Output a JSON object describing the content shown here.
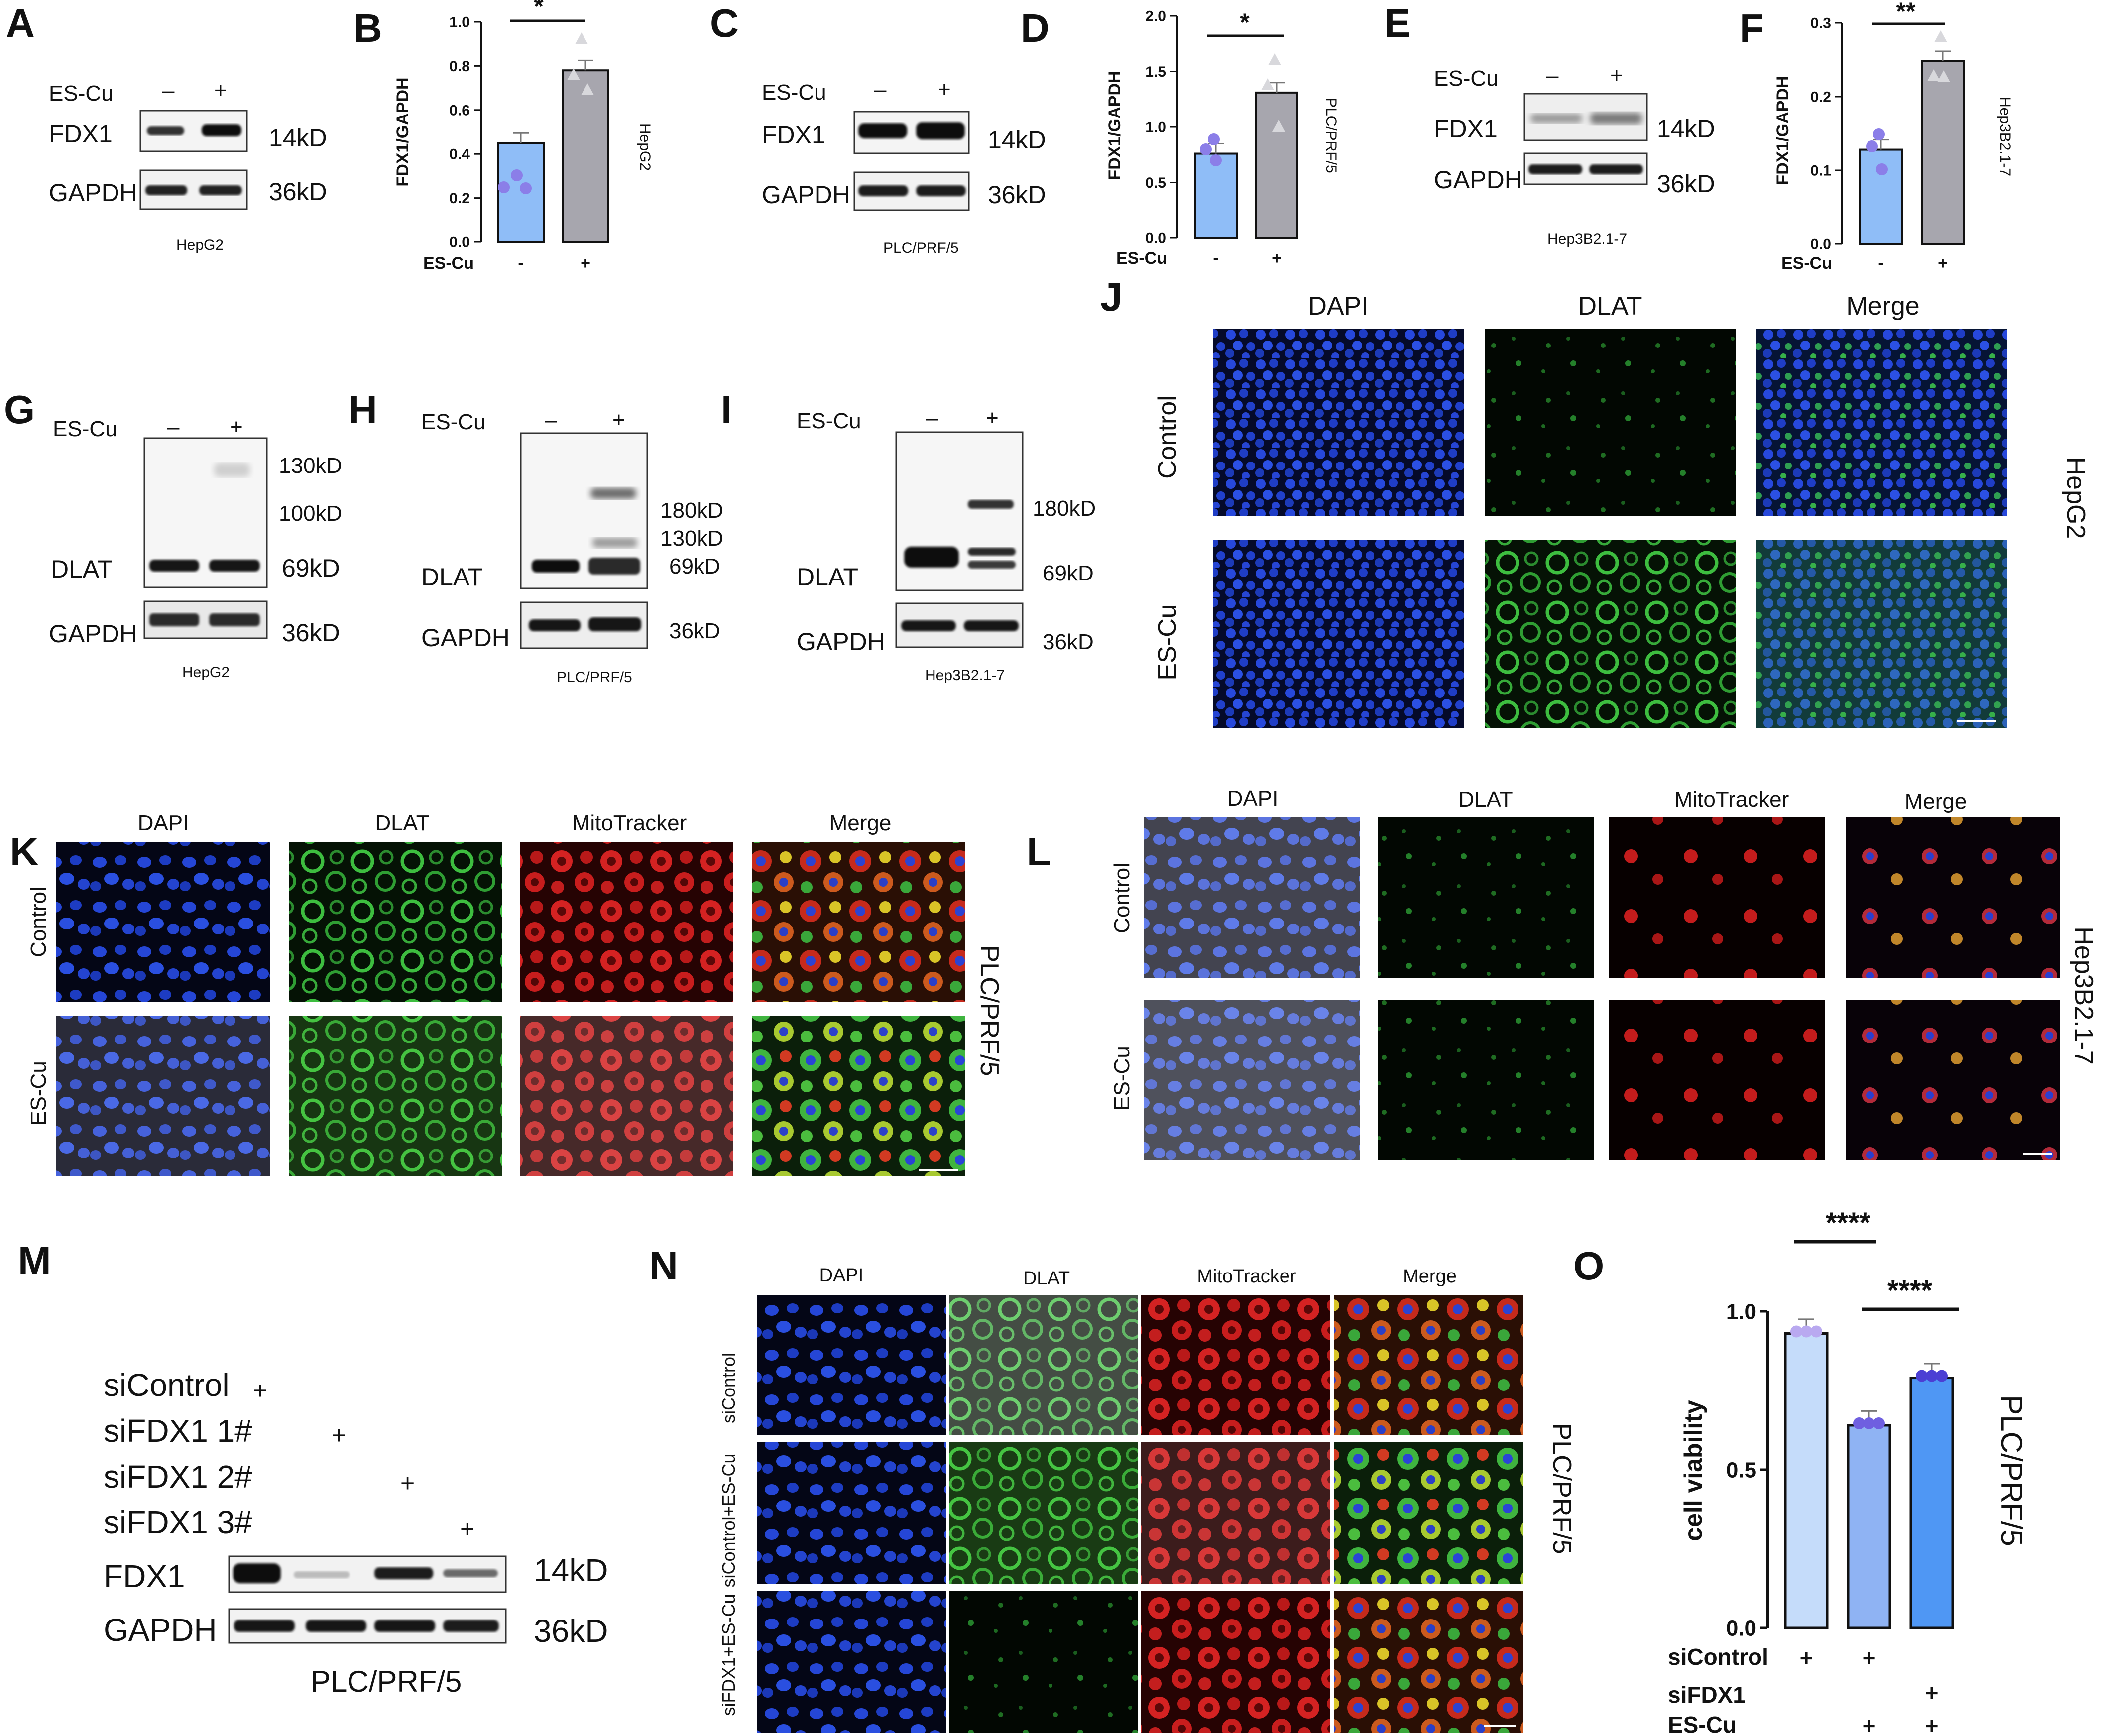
{
  "panels": {
    "A": {
      "letter": "A",
      "treatment": "ES-Cu",
      "minus": "–",
      "plus": "+",
      "band1": "FDX1",
      "band2": "GAPDH",
      "size1": "14kD",
      "size2": "36kD",
      "cell": "HepG2"
    },
    "B": {
      "letter": "B",
      "cell": "HepG2",
      "stars": "*"
    },
    "C": {
      "letter": "C",
      "treatment": "ES-Cu",
      "minus": "–",
      "plus": "+",
      "band1": "FDX1",
      "band2": "GAPDH",
      "size1": "14kD",
      "size2": "36kD",
      "cell": "PLC/PRF/5"
    },
    "D": {
      "letter": "D",
      "cell": "PLC/PRF/5",
      "stars": "*"
    },
    "E": {
      "letter": "E",
      "treatment": "ES-Cu",
      "minus": "–",
      "plus": "+",
      "band1": "FDX1",
      "band2": "GAPDH",
      "size1": "14kD",
      "size2": "36kD",
      "cell": "Hep3B2.1-7"
    },
    "F": {
      "letter": "F",
      "cell": "Hep3B2.1-7",
      "stars": "**"
    },
    "G": {
      "letter": "G",
      "treatment": "ES-Cu",
      "minus": "–",
      "plus": "+",
      "band1": "DLAT",
      "band2": "GAPDH",
      "m1": "130kD",
      "m2": "100kD",
      "m3": "69kD",
      "m4": "36kD",
      "cell": "HepG2"
    },
    "H": {
      "letter": "H",
      "treatment": "ES-Cu",
      "minus": "–",
      "plus": "+",
      "band1": "DLAT",
      "band2": "GAPDH",
      "m1": "180kD",
      "m2": "130kD",
      "m3": "69kD",
      "m4": "36kD",
      "cell": "PLC/PRF/5"
    },
    "I": {
      "letter": "I",
      "treatment": "ES-Cu",
      "minus": "–",
      "plus": "+",
      "band1": "DLAT",
      "band2": "GAPDH",
      "m1": "180kD",
      "m3": "69kD",
      "m4": "36kD",
      "cell": "Hep3B2.1-7"
    },
    "J": {
      "letter": "J",
      "cols": [
        "DAPI",
        "DLAT",
        "Merge"
      ],
      "rows": [
        "Control",
        "ES-Cu"
      ],
      "cell": "HepG2"
    },
    "K": {
      "letter": "K",
      "cols": [
        "DAPI",
        "DLAT",
        "MitoTracker",
        "Merge"
      ],
      "rows": [
        "Control",
        "ES-Cu"
      ],
      "cell": "PLC/PRF/5"
    },
    "L": {
      "letter": "L",
      "cols": [
        "DAPI",
        "DLAT",
        "MitoTracker",
        "Merge"
      ],
      "rows": [
        "Control",
        "ES-Cu"
      ],
      "cell": "Hep3B2.1-7"
    },
    "M": {
      "letter": "M",
      "conds": [
        "siControl",
        "siFDX1 1#",
        "siFDX1 2#",
        "siFDX1 3#"
      ],
      "plus": "+",
      "band1": "FDX1",
      "band2": "GAPDH",
      "size1": "14kD",
      "size2": "36kD",
      "cell": "PLC/PRF/5"
    },
    "N": {
      "letter": "N",
      "cols": [
        "DAPI",
        "DLAT",
        "MitoTracker",
        "Merge"
      ],
      "rows": [
        "siControl",
        "siControl+ES-Cu",
        "siFDX1+ES-Cu"
      ],
      "cell": "PLC/PRF/5"
    },
    "O": {
      "letter": "O",
      "cell": "PLC/PRF/5",
      "stars1": "****",
      "stars2": "****",
      "f1": "siControl",
      "f2": "siFDX1",
      "f3": "ES-Cu",
      "plus": "+"
    }
  },
  "chart_data": [
    {
      "type": "bar",
      "panel": "B",
      "categories": [
        "-",
        "+"
      ],
      "values": [
        0.45,
        0.78
      ],
      "ylabel": "FDX1/GAPDH",
      "xlabel": "ES-Cu",
      "ylim": [
        0,
        1.0
      ],
      "yticks": [
        "0.0",
        "0.2",
        "0.4",
        "0.6",
        "0.8",
        "1.0"
      ]
    },
    {
      "type": "bar",
      "panel": "D",
      "categories": [
        "-",
        "+"
      ],
      "values": [
        0.76,
        1.31
      ],
      "ylabel": "FDX1/GAPDH",
      "xlabel": "ES-Cu",
      "ylim": [
        0,
        2.0
      ],
      "yticks": [
        "0.0",
        "0.5",
        "1.0",
        "1.5",
        "2.0"
      ]
    },
    {
      "type": "bar",
      "panel": "F",
      "categories": [
        "-",
        "+"
      ],
      "values": [
        0.128,
        0.248
      ],
      "ylabel": "FDX1/GAPDH",
      "xlabel": "ES-Cu",
      "ylim": [
        0,
        0.3
      ],
      "yticks": [
        "0.0",
        "0.1",
        "0.2",
        "0.3"
      ]
    },
    {
      "type": "bar",
      "panel": "O",
      "categories": [
        "siControl",
        "siControl+ES-Cu",
        "siFDX1+ES-Cu"
      ],
      "values": [
        0.93,
        0.64,
        0.79
      ],
      "ylabel": "cell viability",
      "ylim": [
        0,
        1.0
      ],
      "yticks": [
        "0.0",
        "0.5",
        "1.0"
      ]
    }
  ],
  "colors": {
    "blue": "#8fbdf7",
    "gray": "#a7a6ae",
    "dot1": "#8b7ee8",
    "dot2": "#d8d8dc",
    "o1": "#c5dcfa",
    "o2": "#8fb3f3",
    "o3": "#4f97f4",
    "dapi": "#1f3fd0",
    "dlat": "#35b43a",
    "mito": "#d82323"
  }
}
